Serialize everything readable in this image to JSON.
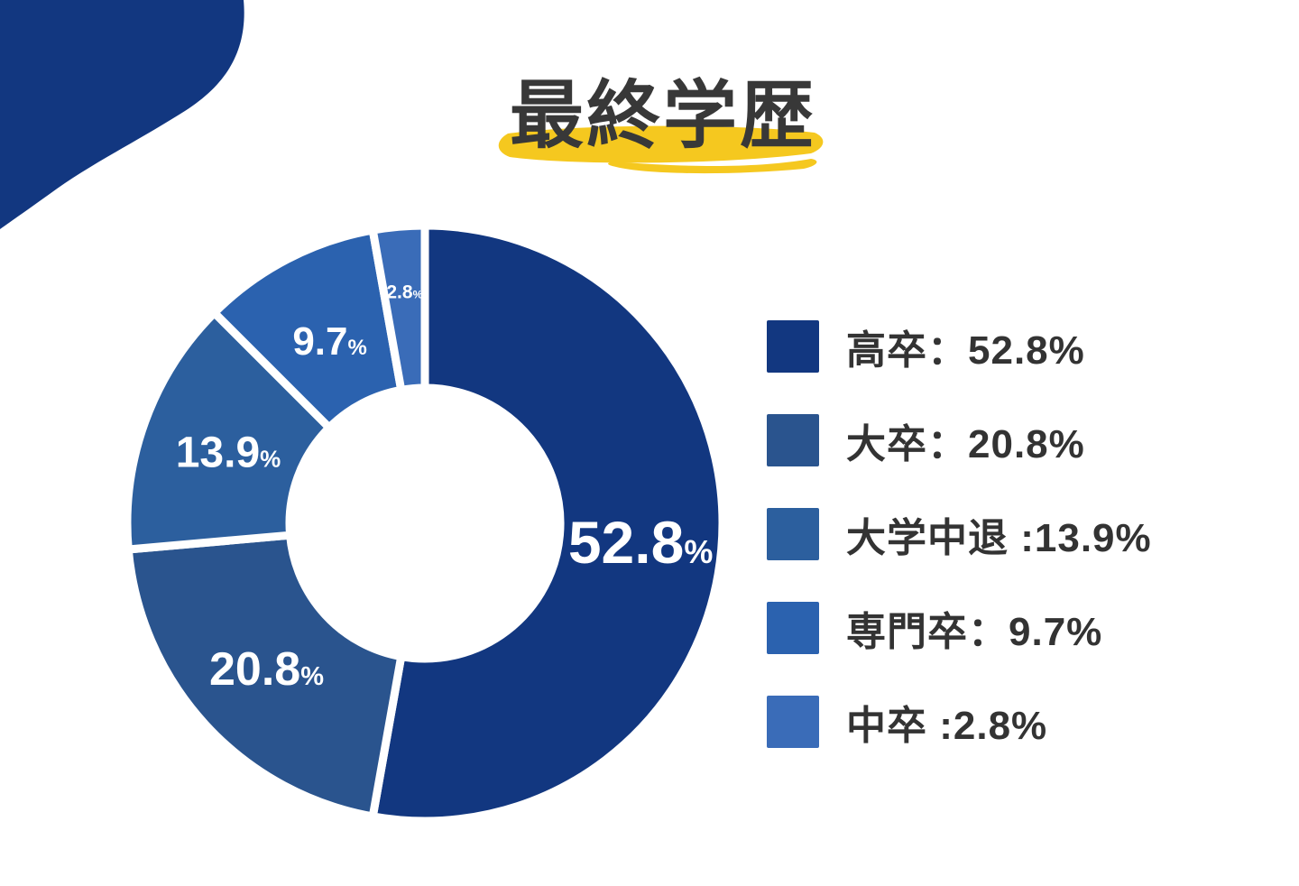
{
  "title": {
    "text": "最終学歴",
    "color": "#383838",
    "highlight_color": "#F5C81F"
  },
  "decor": {
    "corner_blob_color": "#123780"
  },
  "chart_data": {
    "type": "pie",
    "subtype": "donut",
    "title": "最終学歴",
    "unit": "%",
    "start_angle_deg": 0,
    "direction": "clockwise",
    "hole_ratio": 0.455,
    "legend_position": "right",
    "segments": [
      {
        "label": "高卒",
        "value": 52.8,
        "color": "#123780"
      },
      {
        "label": "大卒",
        "value": 20.8,
        "color": "#2A548E"
      },
      {
        "label": "大学中退",
        "value": 13.9,
        "color": "#2C5F9E"
      },
      {
        "label": "専門卒",
        "value": 9.7,
        "color": "#2B62AF"
      },
      {
        "label": "中卒",
        "value": 2.8,
        "color": "#3A6CB8"
      }
    ]
  },
  "legend": {
    "items": [
      {
        "label": "高卒：52.8%",
        "color": "#123780"
      },
      {
        "label": "大卒：20.8%",
        "color": "#2A548E"
      },
      {
        "label": "大学中退 :13.9%",
        "color": "#2C5F9E"
      },
      {
        "label": "専門卒：9.7%",
        "color": "#2B62AF"
      },
      {
        "label": "中卒 :2.8%",
        "color": "#3A6CB8"
      }
    ]
  }
}
